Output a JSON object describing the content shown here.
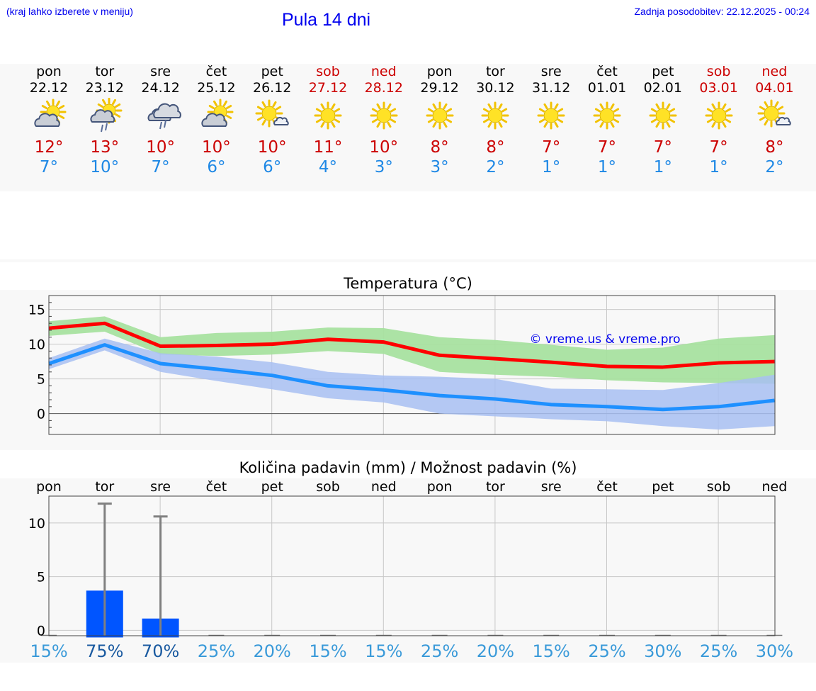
{
  "header": {
    "menu_hint": "(kraj lahko izberete v meniju)",
    "title": "Pula 14 dni",
    "updated": "Zadnja posodobitev: 22.12.2025 - 00:24"
  },
  "colors": {
    "link": "#0000ee",
    "max_temp": "#cc0000",
    "min_temp": "#1e88e5",
    "max_band": "#a8e2a0",
    "min_band": "#a8c0f2",
    "max_line": "#ff0000",
    "min_line": "#1e90ff",
    "precip_bar": "#0055ff",
    "prob_text": "#3a9ad9",
    "prob_text_high": "#1a5aa0"
  },
  "days": [
    {
      "name": "pon",
      "date": "22.12",
      "icon": "sun-cloud",
      "max": "12°",
      "min": "7°",
      "weekend": false
    },
    {
      "name": "tor",
      "date": "23.12",
      "icon": "sun-cloud-rain",
      "max": "13°",
      "min": "10°",
      "weekend": false
    },
    {
      "name": "sre",
      "date": "24.12",
      "icon": "cloud-rain",
      "max": "10°",
      "min": "7°",
      "weekend": false
    },
    {
      "name": "čet",
      "date": "25.12",
      "icon": "sun-cloud",
      "max": "10°",
      "min": "6°",
      "weekend": false
    },
    {
      "name": "pet",
      "date": "26.12",
      "icon": "sun-small-cloud",
      "max": "10°",
      "min": "6°",
      "weekend": false
    },
    {
      "name": "sob",
      "date": "27.12",
      "icon": "sun",
      "max": "11°",
      "min": "4°",
      "weekend": true
    },
    {
      "name": "ned",
      "date": "28.12",
      "icon": "sun",
      "max": "10°",
      "min": "3°",
      "weekend": true
    },
    {
      "name": "pon",
      "date": "29.12",
      "icon": "sun",
      "max": "8°",
      "min": "3°",
      "weekend": false
    },
    {
      "name": "tor",
      "date": "30.12",
      "icon": "sun",
      "max": "8°",
      "min": "2°",
      "weekend": false
    },
    {
      "name": "sre",
      "date": "31.12",
      "icon": "sun",
      "max": "7°",
      "min": "1°",
      "weekend": false
    },
    {
      "name": "čet",
      "date": "01.01",
      "icon": "sun",
      "max": "7°",
      "min": "1°",
      "weekend": false
    },
    {
      "name": "pet",
      "date": "02.01",
      "icon": "sun",
      "max": "7°",
      "min": "1°",
      "weekend": false
    },
    {
      "name": "sob",
      "date": "03.01",
      "icon": "sun",
      "max": "7°",
      "min": "1°",
      "weekend": true
    },
    {
      "name": "ned",
      "date": "04.01",
      "icon": "sun-small-cloud",
      "max": "8°",
      "min": "2°",
      "weekend": true
    }
  ],
  "chart_data": [
    {
      "type": "line",
      "title": "Temperatura (°C)",
      "watermark": "© vreme.us & vreme.pro",
      "ylim": [
        -3,
        17
      ],
      "yticks": [
        0,
        5,
        10,
        15
      ],
      "x": [
        0,
        1,
        2,
        3,
        4,
        5,
        6,
        7,
        8,
        9,
        10,
        11,
        12,
        13
      ],
      "series": [
        {
          "name": "max",
          "values": [
            12.3,
            13.0,
            9.7,
            9.8,
            10.0,
            10.7,
            10.3,
            8.4,
            7.9,
            7.4,
            6.8,
            6.7,
            7.3,
            7.5
          ],
          "band_low": [
            11.2,
            11.8,
            8.5,
            8.3,
            8.5,
            9.0,
            8.6,
            6.0,
            5.6,
            5.3,
            4.8,
            4.5,
            4.4,
            4.3
          ],
          "band_high": [
            13.3,
            14.0,
            11.0,
            11.6,
            11.8,
            12.4,
            12.3,
            11.0,
            10.6,
            9.9,
            9.2,
            9.5,
            10.8,
            11.3
          ]
        },
        {
          "name": "min",
          "values": [
            7.2,
            9.9,
            7.2,
            6.4,
            5.5,
            4.0,
            3.4,
            2.6,
            2.1,
            1.3,
            1.0,
            0.6,
            1.0,
            1.9
          ],
          "band_low": [
            6.4,
            9.1,
            6.0,
            4.7,
            3.5,
            2.2,
            1.6,
            0.0,
            -0.4,
            -0.8,
            -1.1,
            -1.8,
            -2.3,
            -1.8
          ],
          "band_high": [
            8.0,
            10.8,
            8.7,
            8.2,
            7.4,
            6.0,
            5.5,
            5.3,
            5.0,
            3.6,
            3.5,
            3.4,
            4.4,
            5.6
          ]
        }
      ]
    },
    {
      "type": "bar",
      "title": "Količina padavin (mm) / Možnost padavin (%)",
      "categories": [
        "pon",
        "tor",
        "sre",
        "čet",
        "pet",
        "sob",
        "ned",
        "pon",
        "tor",
        "sre",
        "čet",
        "pet",
        "sob",
        "ned"
      ],
      "ylim": [
        -0.5,
        12.5
      ],
      "yticks": [
        0,
        5,
        10
      ],
      "values": [
        0,
        3.7,
        1.1,
        0,
        0,
        0,
        0,
        0,
        0,
        0,
        0,
        0,
        0,
        0
      ],
      "error_high": [
        0,
        11.8,
        10.6,
        0,
        0,
        0,
        0,
        0,
        0,
        0,
        0,
        0,
        0,
        0
      ],
      "probability": [
        "15%",
        "75%",
        "70%",
        "25%",
        "20%",
        "15%",
        "15%",
        "25%",
        "20%",
        "15%",
        "25%",
        "30%",
        "25%",
        "30%"
      ]
    }
  ]
}
